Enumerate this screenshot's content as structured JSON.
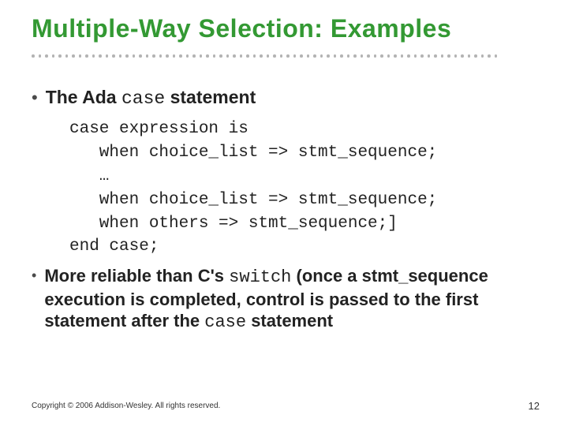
{
  "title": "Multiple-Way Selection: Examples",
  "dots_count": 70,
  "dot_color": "#808080",
  "title_color": "#339933",
  "text_color": "#222222",
  "bullets": {
    "first": {
      "marker": "•",
      "pre": "The Ada ",
      "kw": "case",
      "post": " statement"
    },
    "second": {
      "marker": "•",
      "pre": "More reliable than C's ",
      "kw": "switch",
      "mid": " (once a stmt_sequence execution is completed, control is passed to the first statement after the ",
      "kw2": "case",
      "post": " statement"
    }
  },
  "code": "case expression is\n   when choice_list => stmt_sequence;\n   …\n   when choice_list => stmt_sequence;\n   when others => stmt_sequence;]\nend case;",
  "copyright": "Copyright © 2006 Addison-Wesley. All rights reserved.",
  "pagenum": "12",
  "fontsize_title": 32,
  "fontsize_body": 23,
  "fontsize_code": 21,
  "background_color": "#ffffff"
}
